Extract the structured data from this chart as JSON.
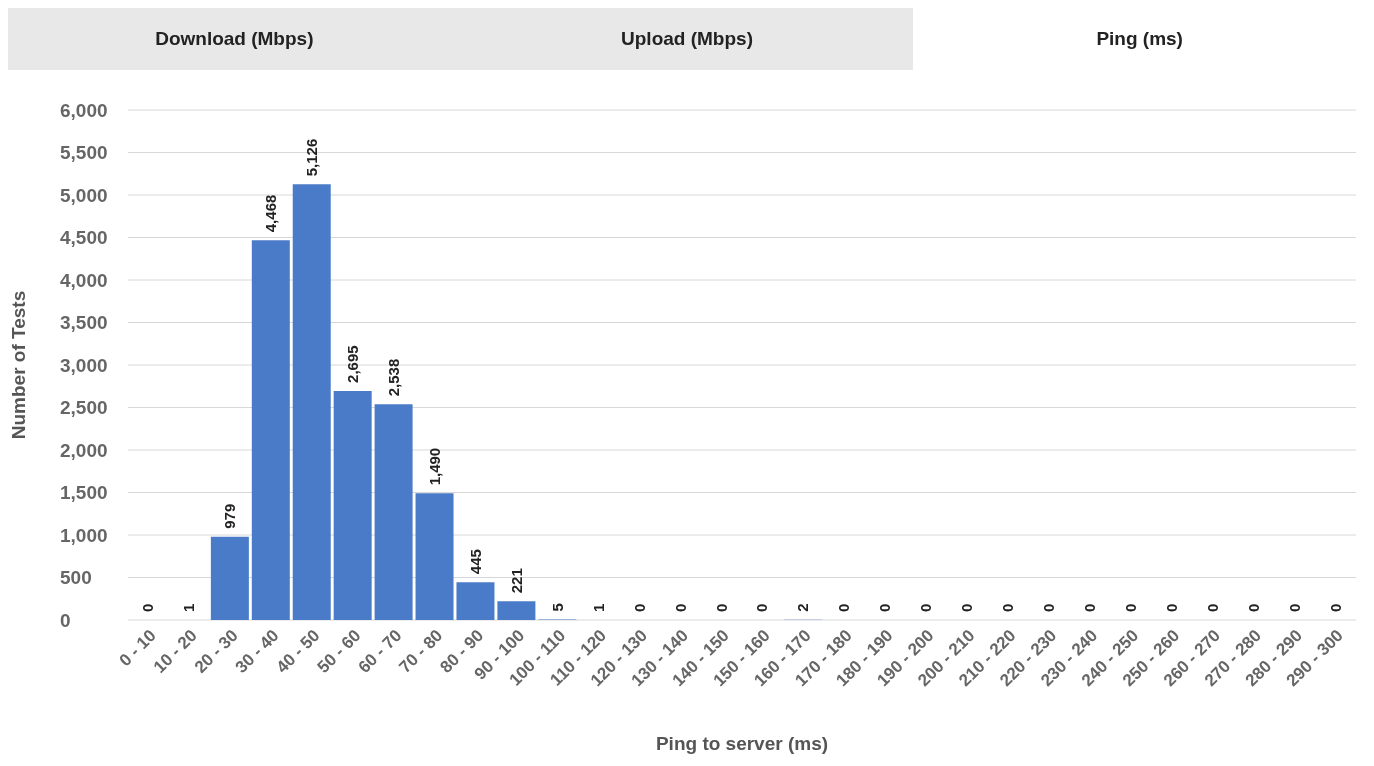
{
  "chart_data": {
    "type": "bar",
    "xlabel": "Ping to server (ms)",
    "ylabel": "Number of Tests",
    "annotations": [
      "Download (Mbps)",
      "Upload (Mbps)",
      "Ping (ms)"
    ],
    "categories": [
      "0 - 10",
      "10 - 20",
      "20 - 30",
      "30 - 40",
      "40 - 50",
      "50 - 60",
      "60 - 70",
      "70 - 80",
      "80 - 90",
      "90 - 100",
      "100 - 110",
      "110 - 120",
      "120 - 130",
      "130 - 140",
      "140 - 150",
      "150 - 160",
      "160 - 170",
      "170 - 180",
      "180 - 190",
      "190 - 200",
      "200 - 210",
      "210 - 220",
      "220 - 230",
      "230 - 240",
      "240 - 250",
      "250 - 260",
      "260 - 270",
      "270 - 280",
      "280 - 290",
      "290 - 300"
    ],
    "values": [
      0,
      1,
      979,
      4468,
      5126,
      2695,
      2538,
      1490,
      445,
      221,
      5,
      1,
      0,
      0,
      0,
      0,
      2,
      0,
      0,
      0,
      0,
      0,
      0,
      0,
      0,
      0,
      0,
      0,
      0,
      0
    ],
    "value_labels": [
      "0",
      "1",
      "979",
      "4,468",
      "5,126",
      "2,695",
      "2,538",
      "1,490",
      "445",
      "221",
      "5",
      "1",
      "0",
      "0",
      "0",
      "0",
      "2",
      "0",
      "0",
      "0",
      "0",
      "0",
      "0",
      "0",
      "0",
      "0",
      "0",
      "0",
      "0",
      "0"
    ],
    "color": "#4a7bc8",
    "ylim": [
      0,
      6000
    ],
    "yticks": [
      0,
      500,
      {
        "value": 1000,
        "label": "1,000"
      },
      {
        "value": 1500,
        "label": "1,500"
      },
      {
        "value": 2000,
        "label": "2,000"
      },
      {
        "value": 2500,
        "label": "2,500"
      },
      {
        "value": 3000,
        "label": "3,000"
      },
      {
        "value": 3500,
        "label": "3,500"
      },
      {
        "value": 4000,
        "label": "4,000"
      },
      {
        "value": 4500,
        "label": "4,500"
      },
      {
        "value": 5000,
        "label": "5,000"
      },
      {
        "value": 5500,
        "label": "5,500"
      },
      {
        "value": 6000,
        "label": "6,000"
      }
    ],
    "grid": "y",
    "legend": false
  }
}
